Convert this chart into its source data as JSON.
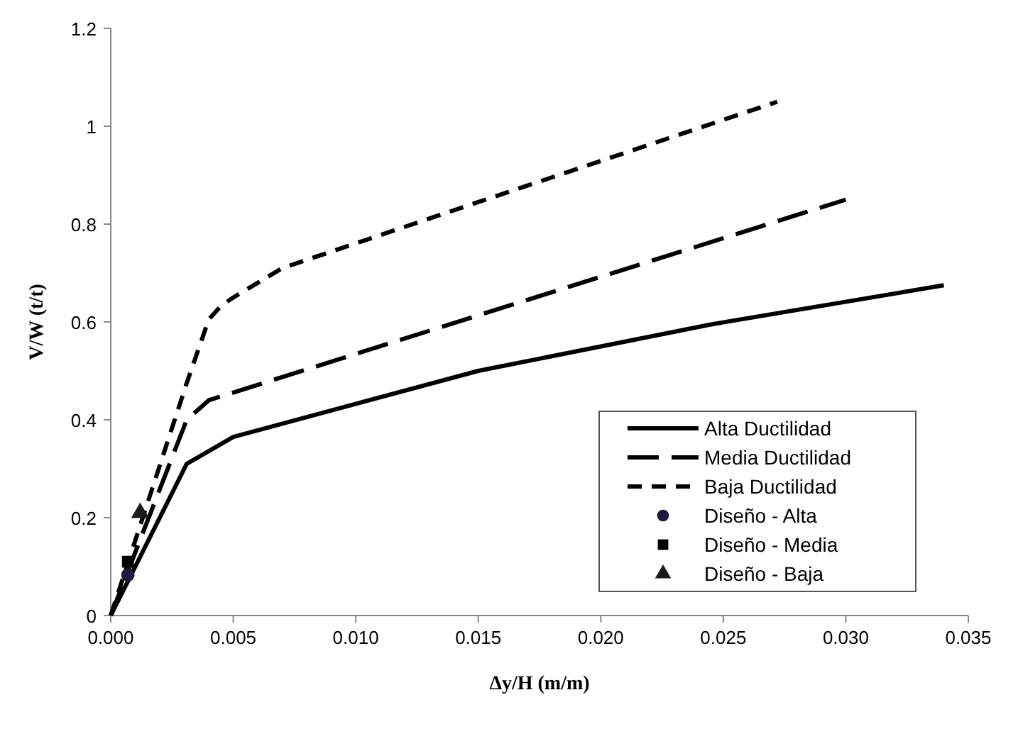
{
  "chart_data": {
    "type": "line",
    "xlabel": "Δy/H (m/m)",
    "ylabel": "V/W (t/t)",
    "xlim": [
      0,
      0.035
    ],
    "ylim": [
      0,
      1.2
    ],
    "xticks": [
      {
        "value": 0,
        "label": "0.000"
      },
      {
        "value": 0.005,
        "label": "0.005"
      },
      {
        "value": 0.01,
        "label": "0.010"
      },
      {
        "value": 0.015,
        "label": "0.015"
      },
      {
        "value": 0.02,
        "label": "0.020"
      },
      {
        "value": 0.025,
        "label": "0.025"
      },
      {
        "value": 0.03,
        "label": "0.030"
      },
      {
        "value": 0.035,
        "label": "0.035"
      }
    ],
    "yticks": [
      0,
      0.2,
      0.4,
      0.6,
      0.8,
      1,
      1.2
    ],
    "grid": false,
    "legend": "bottom right",
    "series": [
      {
        "name": "Alta Ductilidad",
        "color": "#000000",
        "line_style": "solid",
        "marker": "none",
        "x": [
          0,
          0.0031,
          0.005,
          0.015,
          0.0245,
          0.034
        ],
        "values": [
          0,
          0.31,
          0.365,
          0.5,
          0.595,
          0.675
        ]
      },
      {
        "name": "Media Ductilidad",
        "color": "#000000",
        "line_style": "dashed",
        "marker": "none",
        "x": [
          0,
          0.0031,
          0.004,
          0.03
        ],
        "values": [
          0,
          0.4,
          0.44,
          0.85
        ]
      },
      {
        "name": "Baja Ductilidad",
        "color": "#000000",
        "line_style": "dotted",
        "marker": "none",
        "x": [
          0,
          0.0031,
          0.004,
          0.0045,
          0.005,
          0.007,
          0.015,
          0.0272
        ],
        "values": [
          0,
          0.475,
          0.605,
          0.633,
          0.65,
          0.71,
          0.845,
          1.05
        ]
      },
      {
        "name": "Diseño - Alta",
        "type": "scatter",
        "color": "#1f1a3d",
        "marker": "circle",
        "x": [
          0.0007
        ],
        "values": [
          0.083
        ]
      },
      {
        "name": "Diseño - Media",
        "type": "scatter",
        "color": "#000000",
        "marker": "square",
        "x": [
          0.0007
        ],
        "values": [
          0.11
        ]
      },
      {
        "name": "Diseño - Baja",
        "type": "scatter",
        "color": "#1a1a1a",
        "marker": "triangle",
        "x": [
          0.0012
        ],
        "values": [
          0.21
        ]
      }
    ]
  }
}
